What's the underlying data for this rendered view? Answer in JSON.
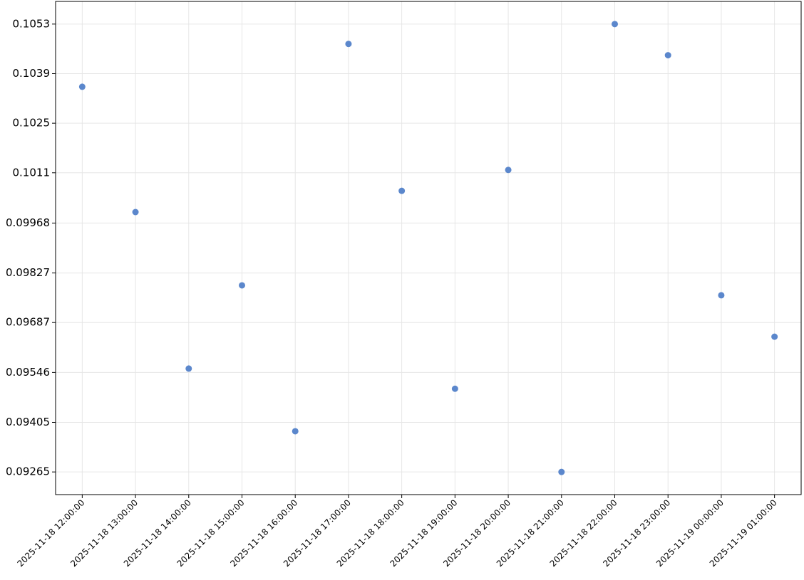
{
  "chart_data": {
    "type": "scatter",
    "color": "#5b87cc",
    "grid": true,
    "x": [
      "2025-11-18 12:00:00",
      "2025-11-18 13:00:00",
      "2025-11-18 14:00:00",
      "2025-11-18 15:00:00",
      "2025-11-18 16:00:00",
      "2025-11-18 17:00:00",
      "2025-11-18 18:00:00",
      "2025-11-18 19:00:00",
      "2025-11-18 20:00:00",
      "2025-11-18 21:00:00",
      "2025-11-18 22:00:00",
      "2025-11-18 23:00:00",
      "2025-11-19 00:00:00",
      "2025-11-19 01:00:00"
    ],
    "values": [
      0.10353,
      0.09999,
      0.09557,
      0.09792,
      0.0938,
      0.10474,
      0.10059,
      0.095,
      0.10118,
      0.09265,
      0.1053,
      0.10442,
      0.09764,
      0.09647
    ],
    "xlim": [
      "2025-11-18 11:30:00",
      "2025-11-19 01:30:00"
    ],
    "xticks": [
      "2025-11-18 12:00:00",
      "2025-11-18 13:00:00",
      "2025-11-18 14:00:00",
      "2025-11-18 15:00:00",
      "2025-11-18 16:00:00",
      "2025-11-18 17:00:00",
      "2025-11-18 18:00:00",
      "2025-11-18 19:00:00",
      "2025-11-18 20:00:00",
      "2025-11-18 21:00:00",
      "2025-11-18 22:00:00",
      "2025-11-18 23:00:00",
      "2025-11-19 00:00:00",
      "2025-11-19 01:00:00"
    ],
    "ylim": [
      0.09201,
      0.10594
    ],
    "yticks": [
      0.09265,
      0.09405,
      0.09546,
      0.09687,
      0.09827,
      0.09968,
      0.1011,
      0.1025,
      0.1039,
      0.1053
    ]
  }
}
